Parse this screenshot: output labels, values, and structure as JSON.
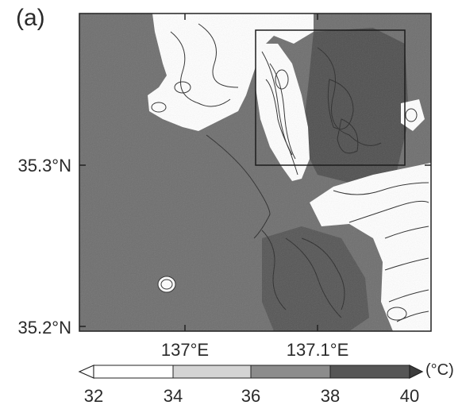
{
  "figure": {
    "panel_label": "(a)",
    "lat_ticks": [
      "35.3°N",
      "35.2°N"
    ],
    "lon_ticks": [
      "137°E",
      "137.1°E"
    ]
  },
  "colorbar": {
    "ticks": [
      "32",
      "34",
      "36",
      "38",
      "40"
    ],
    "unit": "(°C)",
    "colors": [
      "#ffffff",
      "#d4d4d4",
      "#8c8c8c",
      "#565656"
    ]
  },
  "map_style": {
    "land_fill": "#6e6e6e",
    "cool_fill": "#ffffff",
    "hot_fill": "#4e4e4e",
    "contour_color": "#2a2a2a",
    "frame_color": "#222222"
  }
}
